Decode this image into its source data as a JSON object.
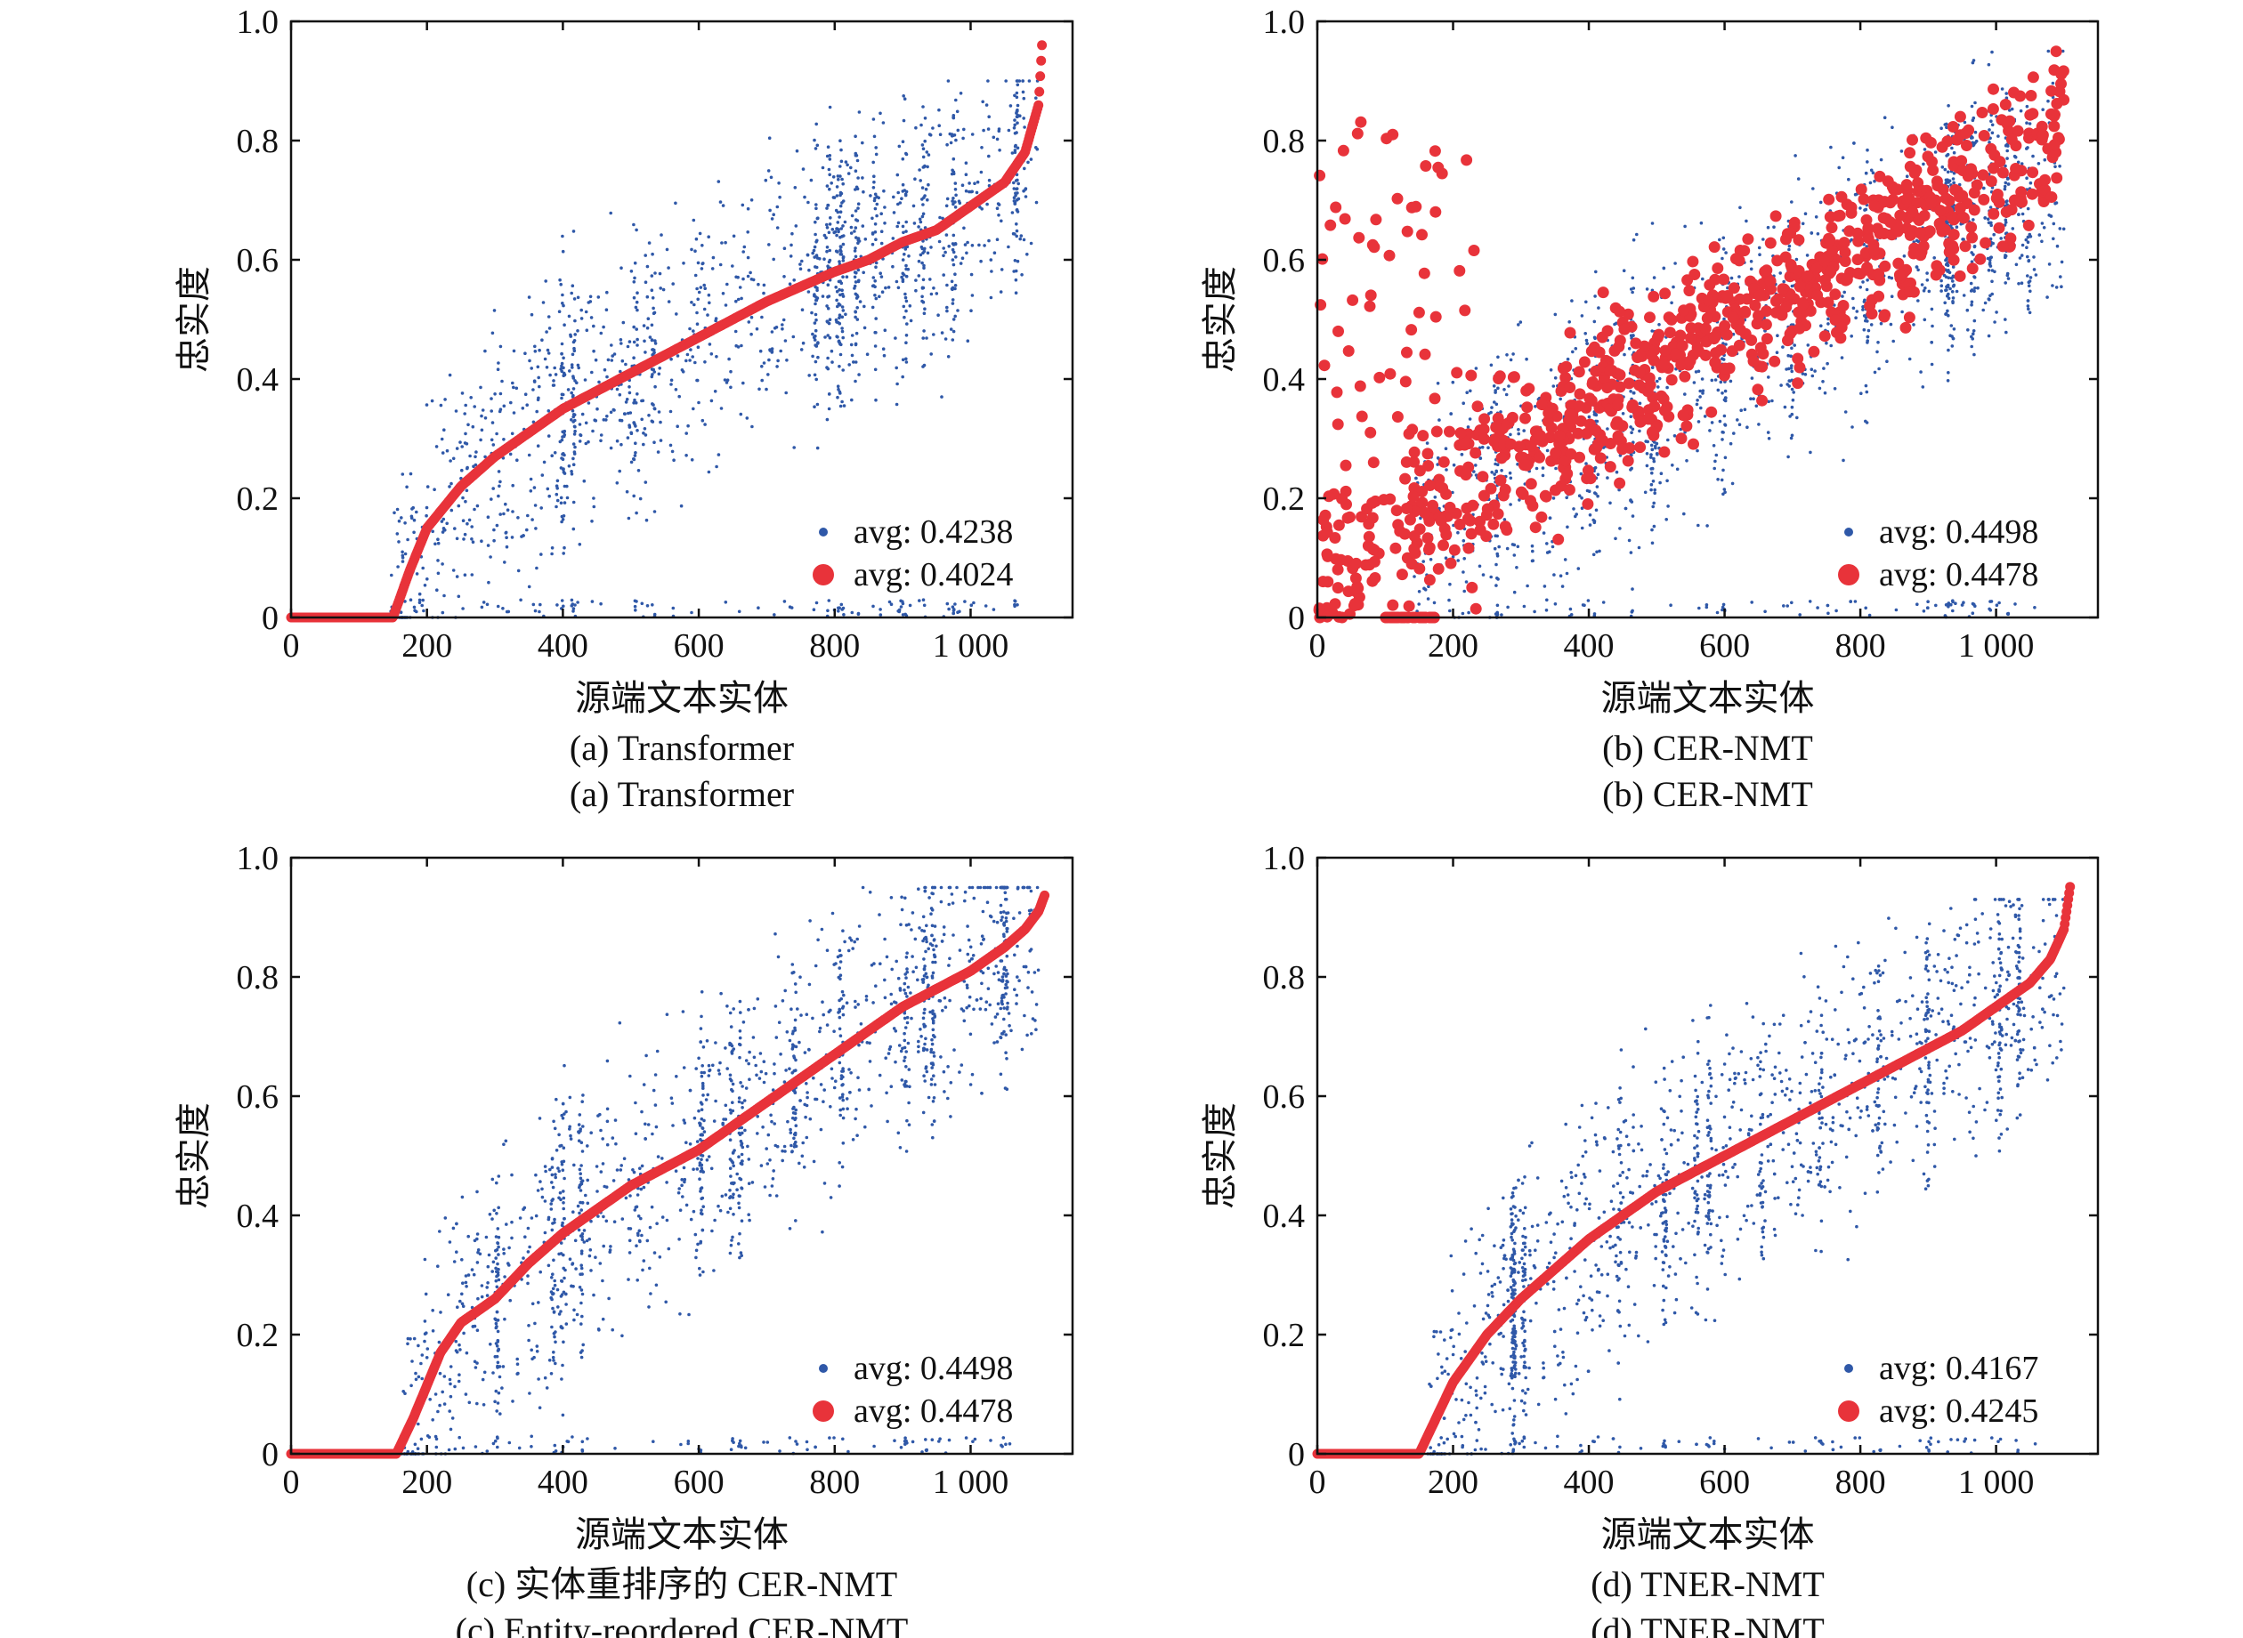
{
  "colors": {
    "blue": "#2f58a8",
    "red": "#e8333a",
    "axis": "#111111"
  },
  "chart_data": [
    {
      "type": "scatter",
      "xlabel": "源端文本实体",
      "ylabel": "忠实度",
      "xlim": [
        0,
        1150
      ],
      "ylim": [
        0,
        1.0
      ],
      "x_ticks": [
        "0",
        "200",
        "400",
        "600",
        "800",
        "1 000"
      ],
      "y_ticks": [
        "0",
        "0.2",
        "0.4",
        "0.6",
        "0.8",
        "1.0"
      ],
      "caption_1": "(a) Transformer",
      "caption_2": "(a) Transformer",
      "legend": [
        "avg: 0.4238",
        "avg: 0.4024"
      ],
      "series": [
        {
          "marker": "small-dot",
          "color": "#2f58a8",
          "x_range": [
            140,
            1100
          ],
          "y_range": [
            0,
            0.9
          ],
          "spread": "scattered"
        },
        {
          "marker": "large-dot",
          "color": "#e8333a",
          "x": [
            0,
            150,
            175,
            200,
            250,
            300,
            350,
            400,
            450,
            500,
            550,
            600,
            650,
            700,
            750,
            800,
            850,
            900,
            950,
            1000,
            1050,
            1080,
            1100,
            1105
          ],
          "y": [
            0,
            0,
            0.08,
            0.15,
            0.22,
            0.27,
            0.31,
            0.35,
            0.38,
            0.41,
            0.44,
            0.47,
            0.5,
            0.53,
            0.555,
            0.58,
            0.6,
            0.63,
            0.65,
            0.69,
            0.73,
            0.78,
            0.86,
            0.96
          ]
        }
      ]
    },
    {
      "type": "scatter",
      "xlabel": "源端文本实体",
      "ylabel": "忠实度",
      "xlim": [
        0,
        1150
      ],
      "ylim": [
        0,
        1.0
      ],
      "x_ticks": [
        "0",
        "200",
        "400",
        "600",
        "800",
        "1 000"
      ],
      "y_ticks": [
        "0",
        "0.2",
        "0.4",
        "0.6",
        "0.8",
        "1.0"
      ],
      "caption_1": "(b) CER-NMT",
      "caption_2": "(b) CER-NMT",
      "legend": [
        "avg: 0.4498",
        "avg: 0.4478"
      ],
      "series": [
        {
          "marker": "small-dot",
          "color": "#2f58a8",
          "x_range": [
            140,
            1100
          ],
          "y_range": [
            0,
            0.95
          ],
          "spread": "scattered"
        },
        {
          "marker": "large-dot",
          "color": "#e8333a",
          "x_range": [
            0,
            1100
          ],
          "y_range": [
            0,
            0.95
          ],
          "spread": "scattered-increasing"
        }
      ]
    },
    {
      "type": "scatter",
      "xlabel": "源端文本实体",
      "ylabel": "忠实度",
      "xlim": [
        0,
        1150
      ],
      "ylim": [
        0,
        1.0
      ],
      "x_ticks": [
        "0",
        "200",
        "400",
        "600",
        "800",
        "1 000"
      ],
      "y_ticks": [
        "0",
        "0.2",
        "0.4",
        "0.6",
        "0.8",
        "1.0"
      ],
      "caption_1": "(c) 实体重排序的 CER-NMT",
      "caption_2": "(c) Entity-reordered CER-NMT",
      "legend": [
        "avg: 0.4498",
        "avg: 0.4478"
      ],
      "series": [
        {
          "marker": "small-dot",
          "color": "#2f58a8",
          "x_range": [
            160,
            1100
          ],
          "y_range": [
            0,
            0.95
          ],
          "spread": "scattered"
        },
        {
          "marker": "large-dot",
          "color": "#e8333a",
          "x": [
            0,
            155,
            180,
            220,
            250,
            300,
            350,
            400,
            450,
            500,
            550,
            600,
            650,
            700,
            750,
            800,
            850,
            900,
            950,
            1000,
            1050,
            1080,
            1100,
            1110
          ],
          "y": [
            0,
            0,
            0.06,
            0.17,
            0.22,
            0.26,
            0.32,
            0.37,
            0.41,
            0.45,
            0.48,
            0.51,
            0.55,
            0.59,
            0.63,
            0.67,
            0.71,
            0.75,
            0.78,
            0.81,
            0.85,
            0.88,
            0.91,
            0.94
          ]
        }
      ]
    },
    {
      "type": "scatter",
      "xlabel": "源端文本实体",
      "ylabel": "忠实度",
      "xlim": [
        0,
        1150
      ],
      "ylim": [
        0,
        1.0
      ],
      "x_ticks": [
        "0",
        "200",
        "400",
        "600",
        "800",
        "1 000"
      ],
      "y_ticks": [
        "0",
        "0.2",
        "0.4",
        "0.6",
        "0.8",
        "1.0"
      ],
      "caption_1": "(d) TNER-NMT",
      "caption_2": "(d) TNER-NMT",
      "legend": [
        "avg: 0.4167",
        "avg: 0.4245"
      ],
      "series": [
        {
          "marker": "small-dot",
          "color": "#2f58a8",
          "x_range": [
            160,
            1100
          ],
          "y_range": [
            0,
            0.93
          ],
          "spread": "scattered"
        },
        {
          "marker": "large-dot",
          "color": "#e8333a",
          "x": [
            0,
            150,
            175,
            200,
            250,
            300,
            350,
            400,
            450,
            500,
            550,
            600,
            650,
            700,
            750,
            800,
            850,
            900,
            950,
            1000,
            1050,
            1080,
            1100,
            1110
          ],
          "y": [
            0,
            0,
            0.06,
            0.12,
            0.2,
            0.26,
            0.31,
            0.36,
            0.4,
            0.44,
            0.47,
            0.5,
            0.53,
            0.56,
            0.59,
            0.62,
            0.65,
            0.68,
            0.71,
            0.75,
            0.79,
            0.83,
            0.88,
            0.96
          ]
        }
      ]
    }
  ]
}
